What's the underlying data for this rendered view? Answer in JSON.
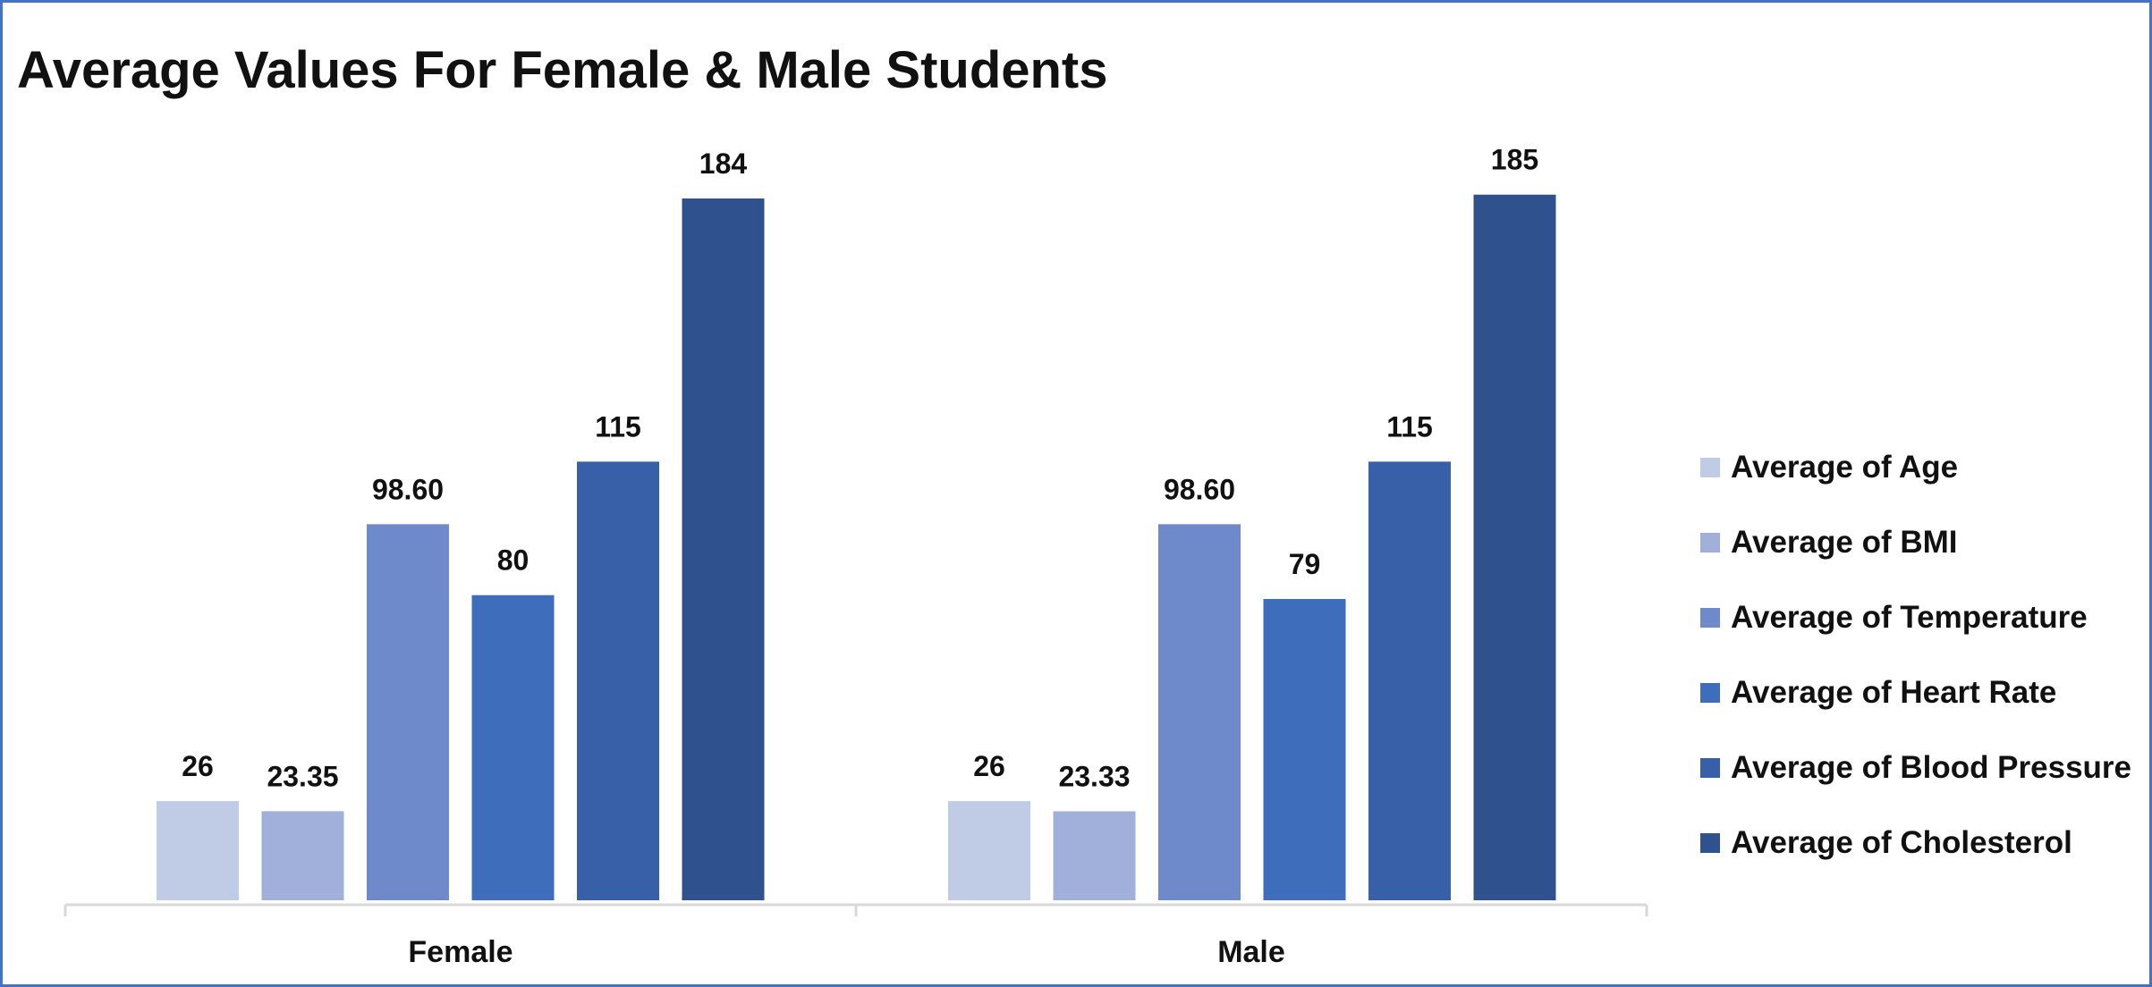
{
  "chart_data": {
    "type": "bar",
    "title": "Average Values For Female & Male Students",
    "categories": [
      "Female",
      "Male"
    ],
    "series": [
      {
        "name": "Average of Age",
        "values": [
          26,
          26
        ],
        "labels": [
          "26",
          "26"
        ],
        "color": "#c0cbe6"
      },
      {
        "name": "Average of BMI",
        "values": [
          23.35,
          23.33
        ],
        "labels": [
          "23.35",
          "23.33"
        ],
        "color": "#a0b0da"
      },
      {
        "name": "Average of Temperature",
        "values": [
          98.6,
          98.6
        ],
        "labels": [
          "98.60",
          "98.60"
        ],
        "color": "#6e8acb"
      },
      {
        "name": "Average of Heart Rate",
        "values": [
          80,
          79
        ],
        "labels": [
          "80",
          "79"
        ],
        "color": "#3e6dbb"
      },
      {
        "name": "Average of Blood Pressure",
        "values": [
          115,
          115
        ],
        "labels": [
          "115",
          "115"
        ],
        "color": "#3860a8"
      },
      {
        "name": "Average of Cholesterol",
        "values": [
          184,
          185
        ],
        "labels": [
          "184",
          "185"
        ],
        "color": "#2f528e"
      }
    ],
    "ylim": [
      0,
      184
    ],
    "grid": false,
    "legend_position": "right",
    "axis_color": "#d9d9d9"
  }
}
